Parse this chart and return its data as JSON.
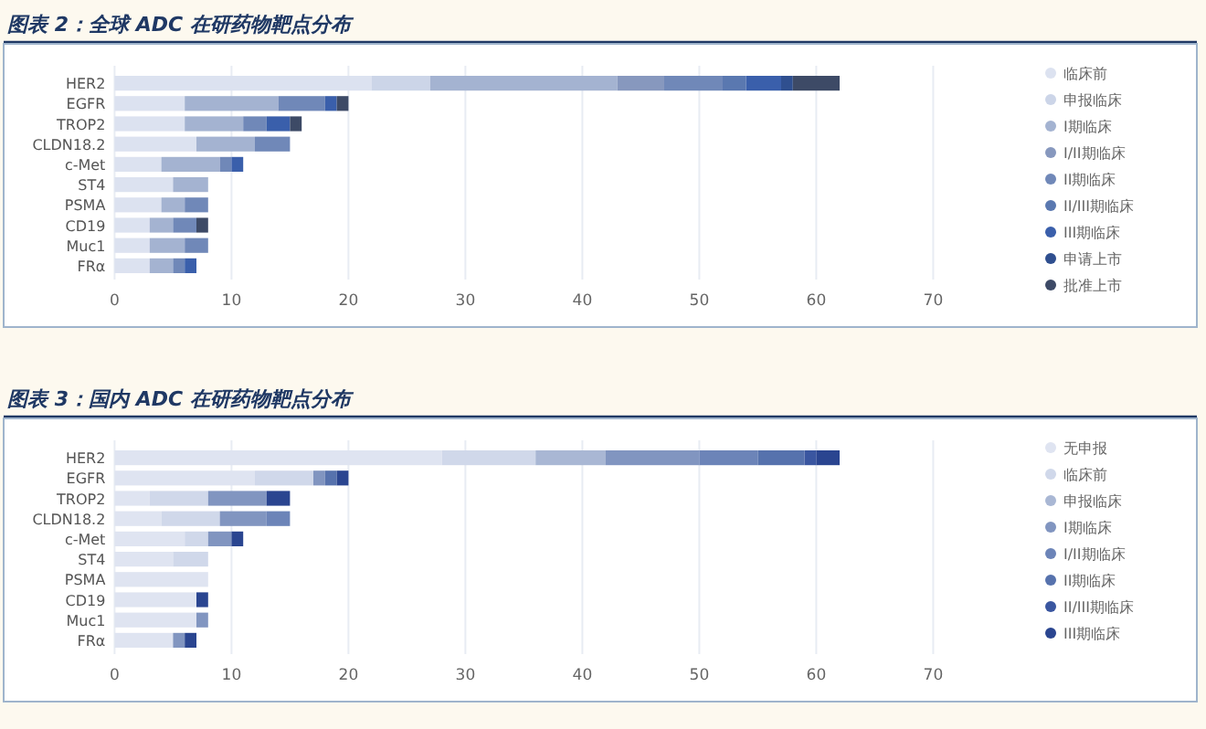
{
  "chart_data": [
    {
      "type": "bar",
      "orientation": "horizontal",
      "stacked": true,
      "title": "图表 2：全球 ADC 在研药物靶点分布",
      "categories": [
        "HER2",
        "EGFR",
        "TROP2",
        "CLDN18.2",
        "c-Met",
        "ST4",
        "PSMA",
        "CD19",
        "Muc1",
        "FRα"
      ],
      "xlim": [
        0,
        70
      ],
      "xticks": [
        0,
        10,
        20,
        30,
        40,
        50,
        60,
        70
      ],
      "grid": "x",
      "legend": "right",
      "series": [
        {
          "name": "临床前",
          "color": "#dce2f0",
          "values": [
            22,
            6,
            6,
            7,
            4,
            5,
            4,
            3,
            3,
            3
          ]
        },
        {
          "name": "申报临床",
          "color": "#ccd5e8",
          "values": [
            5,
            0,
            0,
            0,
            0,
            0,
            0,
            0,
            0,
            0
          ]
        },
        {
          "name": "I期临床",
          "color": "#a4b3d1",
          "values": [
            16,
            8,
            5,
            5,
            5,
            3,
            2,
            2,
            3,
            2
          ]
        },
        {
          "name": "I/II期临床",
          "color": "#8798be",
          "values": [
            4,
            0,
            0,
            0,
            0,
            0,
            0,
            0,
            0,
            0
          ]
        },
        {
          "name": "II期临床",
          "color": "#7088b8",
          "values": [
            5,
            4,
            2,
            3,
            1,
            0,
            2,
            2,
            2,
            1
          ]
        },
        {
          "name": "II/III期临床",
          "color": "#5a78b0",
          "values": [
            2,
            0,
            0,
            0,
            0,
            0,
            0,
            0,
            0,
            0
          ]
        },
        {
          "name": "III期临床",
          "color": "#3a5fab",
          "values": [
            3,
            1,
            2,
            0,
            1,
            0,
            0,
            0,
            0,
            1
          ]
        },
        {
          "name": "申请上市",
          "color": "#2f4f8f",
          "values": [
            1,
            0,
            0,
            0,
            0,
            0,
            0,
            0,
            0,
            0
          ]
        },
        {
          "name": "批准上市",
          "color": "#3d4a66",
          "values": [
            4,
            1,
            1,
            0,
            0,
            0,
            0,
            1,
            0,
            0
          ]
        }
      ]
    },
    {
      "type": "bar",
      "orientation": "horizontal",
      "stacked": true,
      "title": "图表 3：国内 ADC 在研药物靶点分布",
      "categories": [
        "HER2",
        "EGFR",
        "TROP2",
        "CLDN18.2",
        "c-Met",
        "ST4",
        "PSMA",
        "CD19",
        "Muc1",
        "FRα"
      ],
      "xlim": [
        0,
        70
      ],
      "xticks": [
        0,
        10,
        20,
        30,
        40,
        50,
        60,
        70
      ],
      "grid": "x",
      "legend": "right",
      "series": [
        {
          "name": "无申报",
          "color": "#dfe4f1",
          "values": [
            28,
            12,
            3,
            4,
            6,
            5,
            8,
            7,
            7,
            5
          ]
        },
        {
          "name": "临床前",
          "color": "#d0d8ea",
          "values": [
            8,
            5,
            5,
            5,
            2,
            3,
            0,
            0,
            0,
            0
          ]
        },
        {
          "name": "申报临床",
          "color": "#a9b7d4",
          "values": [
            6,
            0,
            0,
            0,
            0,
            0,
            0,
            0,
            0,
            0
          ]
        },
        {
          "name": "I期临床",
          "color": "#8195c0",
          "values": [
            8,
            1,
            5,
            4,
            2,
            0,
            0,
            0,
            1,
            1
          ]
        },
        {
          "name": "I/II期临床",
          "color": "#6c84b8",
          "values": [
            5,
            0,
            0,
            2,
            0,
            0,
            0,
            0,
            0,
            0
          ]
        },
        {
          "name": "II期临床",
          "color": "#5672ad",
          "values": [
            4,
            1,
            0,
            0,
            0,
            0,
            0,
            0,
            0,
            0
          ]
        },
        {
          "name": "II/III期临床",
          "color": "#3a56a0",
          "values": [
            1,
            0,
            0,
            0,
            0,
            0,
            0,
            0,
            0,
            0
          ]
        },
        {
          "name": "III期临床",
          "color": "#2a4590",
          "values": [
            2,
            1,
            2,
            0,
            1,
            0,
            0,
            1,
            0,
            1
          ]
        }
      ]
    }
  ]
}
